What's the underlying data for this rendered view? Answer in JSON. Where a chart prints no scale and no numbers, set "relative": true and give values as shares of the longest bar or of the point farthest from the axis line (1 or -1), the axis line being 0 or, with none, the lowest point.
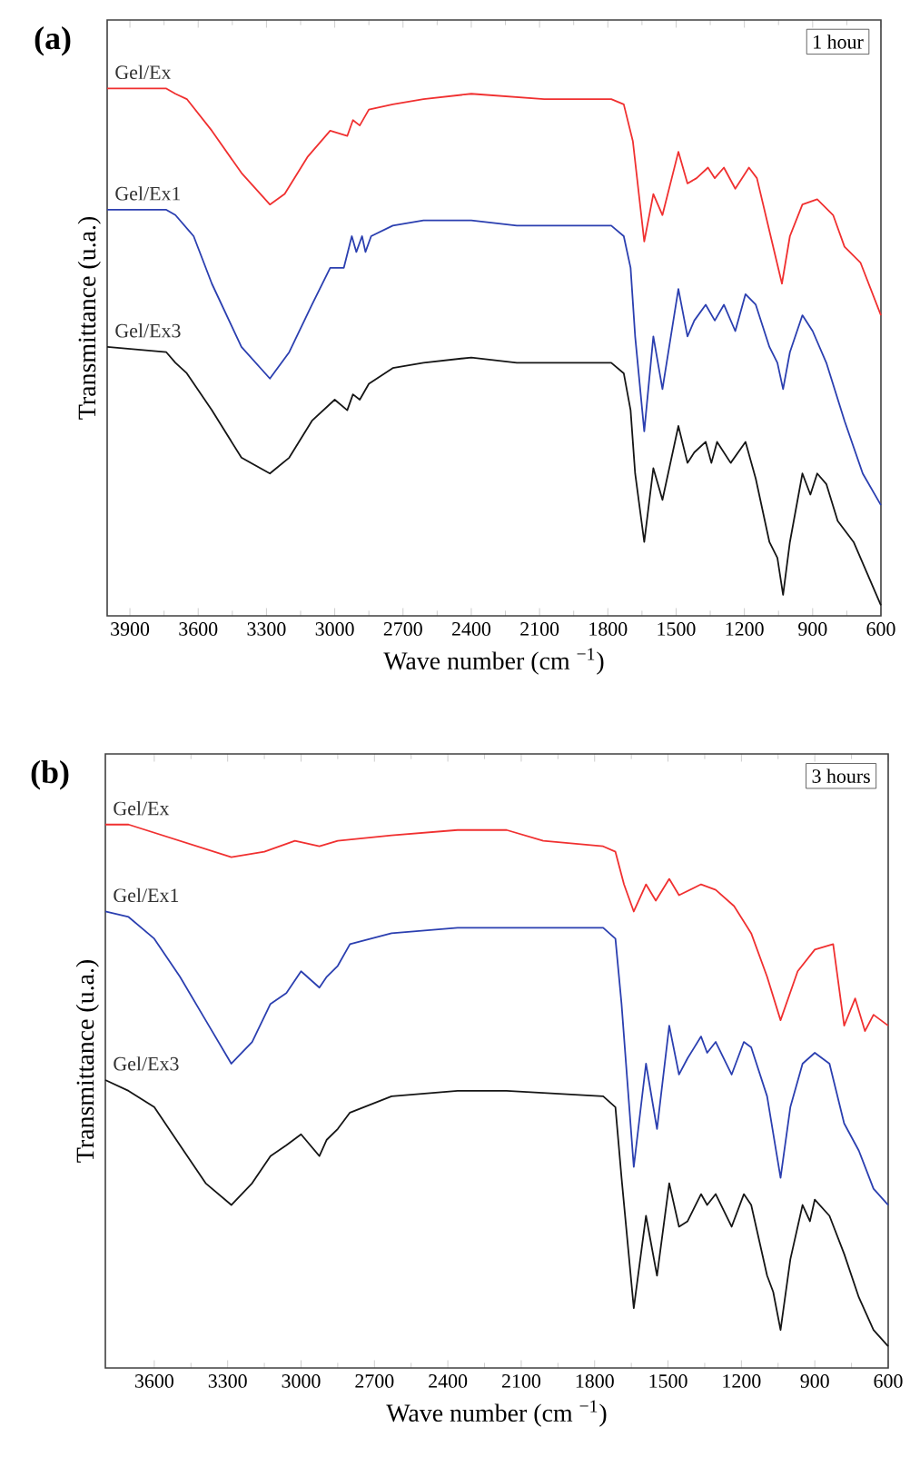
{
  "chart_data": [
    {
      "type": "line",
      "title": "(a)",
      "xlabel": "Wave number (cm $^{−1}$)",
      "ylabel": "Transmittance (u.a.)",
      "annotations": [
        "1 hour"
      ],
      "relative": true,
      "marker": "none",
      "line_style": "solid",
      "xlim": [
        4000,
        600
      ],
      "xticks": [
        3900,
        3600,
        3300,
        3000,
        2700,
        2400,
        2100,
        1800,
        1500,
        1200,
        900,
        600
      ],
      "series": [
        {
          "name": "Gel/Ex",
          "color": "#f03030",
          "x": [
            4000,
            3740,
            3700,
            3650,
            3540,
            3410,
            3285,
            3220,
            3120,
            3020,
            2945,
            2920,
            2890,
            2850,
            2745,
            2610,
            2400,
            2080,
            1785,
            1730,
            1690,
            1640,
            1600,
            1560,
            1490,
            1450,
            1410,
            1360,
            1330,
            1290,
            1240,
            1180,
            1145,
            1090,
            1035,
            1000,
            945,
            880,
            810,
            760,
            690,
            600
          ],
          "values": [
            1.0,
            1.0,
            0.99,
            0.98,
            0.92,
            0.84,
            0.78,
            0.8,
            0.87,
            0.92,
            0.91,
            0.94,
            0.93,
            0.96,
            0.97,
            0.98,
            0.99,
            0.98,
            0.98,
            0.97,
            0.9,
            0.71,
            0.8,
            0.76,
            0.88,
            0.82,
            0.83,
            0.85,
            0.83,
            0.85,
            0.81,
            0.85,
            0.83,
            0.73,
            0.63,
            0.72,
            0.78,
            0.79,
            0.76,
            0.7,
            0.67,
            0.57
          ]
        },
        {
          "name": "Gel/Ex1",
          "color": "#2b3fb0",
          "x": [
            4000,
            3740,
            3700,
            3620,
            3540,
            3410,
            3285,
            3200,
            3100,
            3020,
            2960,
            2925,
            2905,
            2880,
            2865,
            2840,
            2745,
            2610,
            2400,
            2200,
            1785,
            1730,
            1700,
            1680,
            1640,
            1600,
            1560,
            1490,
            1450,
            1420,
            1370,
            1330,
            1290,
            1240,
            1195,
            1150,
            1090,
            1055,
            1030,
            1000,
            945,
            900,
            840,
            760,
            680,
            600
          ],
          "values": [
            0.77,
            0.77,
            0.76,
            0.72,
            0.63,
            0.51,
            0.45,
            0.5,
            0.59,
            0.66,
            0.66,
            0.72,
            0.69,
            0.72,
            0.69,
            0.72,
            0.74,
            0.75,
            0.75,
            0.74,
            0.74,
            0.72,
            0.66,
            0.53,
            0.35,
            0.53,
            0.43,
            0.62,
            0.53,
            0.56,
            0.59,
            0.56,
            0.59,
            0.54,
            0.61,
            0.59,
            0.51,
            0.48,
            0.43,
            0.5,
            0.57,
            0.54,
            0.48,
            0.37,
            0.27,
            0.21
          ]
        },
        {
          "name": "Gel/Ex3",
          "color": "#151515",
          "x": [
            4000,
            3740,
            3700,
            3650,
            3540,
            3410,
            3285,
            3200,
            3100,
            3000,
            2945,
            2920,
            2890,
            2850,
            2745,
            2610,
            2400,
            2200,
            1785,
            1730,
            1700,
            1680,
            1640,
            1600,
            1560,
            1490,
            1450,
            1420,
            1370,
            1345,
            1320,
            1260,
            1195,
            1150,
            1090,
            1055,
            1030,
            1000,
            945,
            910,
            880,
            840,
            790,
            720,
            600
          ],
          "values": [
            0.51,
            0.5,
            0.48,
            0.46,
            0.39,
            0.3,
            0.27,
            0.3,
            0.37,
            0.41,
            0.39,
            0.42,
            0.41,
            0.44,
            0.47,
            0.48,
            0.49,
            0.48,
            0.48,
            0.46,
            0.39,
            0.27,
            0.14,
            0.28,
            0.22,
            0.36,
            0.29,
            0.31,
            0.33,
            0.29,
            0.33,
            0.29,
            0.33,
            0.26,
            0.14,
            0.11,
            0.04,
            0.14,
            0.27,
            0.23,
            0.27,
            0.25,
            0.18,
            0.14,
            0.02
          ]
        }
      ]
    },
    {
      "type": "line",
      "title": "(b)",
      "xlabel": "Wave number (cm $^{−1}$)",
      "ylabel": "Transmittance (u.a.)",
      "annotations": [
        "3 hours"
      ],
      "relative": true,
      "marker": "none",
      "line_style": "solid",
      "xlim": [
        3800,
        600
      ],
      "xticks": [
        3600,
        3300,
        3000,
        2700,
        2400,
        2100,
        1800,
        1500,
        1200,
        900,
        600
      ],
      "series": [
        {
          "name": "Gel/Ex",
          "color": "#f03030",
          "x": [
            3800,
            3705,
            3495,
            3285,
            3150,
            3025,
            2925,
            2850,
            2630,
            2360,
            2160,
            2010,
            1765,
            1715,
            1680,
            1640,
            1590,
            1550,
            1495,
            1455,
            1365,
            1305,
            1230,
            1160,
            1095,
            1040,
            970,
            900,
            825,
            780,
            735,
            695,
            660,
            600
          ],
          "values": [
            1.0,
            1.0,
            0.97,
            0.94,
            0.95,
            0.97,
            0.96,
            0.97,
            0.98,
            0.99,
            0.99,
            0.97,
            0.96,
            0.95,
            0.89,
            0.84,
            0.89,
            0.86,
            0.9,
            0.87,
            0.89,
            0.88,
            0.85,
            0.8,
            0.72,
            0.64,
            0.73,
            0.77,
            0.78,
            0.63,
            0.68,
            0.62,
            0.65,
            0.63
          ]
        },
        {
          "name": "Gel/Ex1",
          "color": "#2b3fb0",
          "x": [
            3800,
            3705,
            3600,
            3495,
            3390,
            3285,
            3200,
            3125,
            3060,
            3000,
            2925,
            2895,
            2850,
            2800,
            2630,
            2360,
            2160,
            1765,
            1715,
            1690,
            1640,
            1590,
            1545,
            1495,
            1455,
            1420,
            1365,
            1340,
            1305,
            1240,
            1190,
            1160,
            1095,
            1040,
            1000,
            950,
            900,
            840,
            780,
            720,
            660,
            600
          ],
          "values": [
            0.84,
            0.83,
            0.79,
            0.72,
            0.64,
            0.56,
            0.6,
            0.67,
            0.69,
            0.73,
            0.7,
            0.72,
            0.74,
            0.78,
            0.8,
            0.81,
            0.81,
            0.81,
            0.79,
            0.67,
            0.37,
            0.56,
            0.44,
            0.63,
            0.54,
            0.57,
            0.61,
            0.58,
            0.6,
            0.54,
            0.6,
            0.59,
            0.5,
            0.35,
            0.48,
            0.56,
            0.58,
            0.56,
            0.45,
            0.4,
            0.33,
            0.3
          ]
        },
        {
          "name": "Gel/Ex3",
          "color": "#151515",
          "x": [
            3800,
            3705,
            3600,
            3495,
            3390,
            3285,
            3200,
            3125,
            3060,
            3000,
            2925,
            2895,
            2850,
            2800,
            2630,
            2360,
            2160,
            1765,
            1715,
            1690,
            1640,
            1590,
            1545,
            1495,
            1455,
            1420,
            1365,
            1340,
            1305,
            1240,
            1190,
            1160,
            1095,
            1070,
            1040,
            1000,
            950,
            920,
            900,
            840,
            780,
            720,
            660,
            600
          ],
          "values": [
            0.53,
            0.51,
            0.48,
            0.41,
            0.34,
            0.3,
            0.34,
            0.39,
            0.41,
            0.43,
            0.39,
            0.42,
            0.44,
            0.47,
            0.5,
            0.51,
            0.51,
            0.5,
            0.48,
            0.35,
            0.11,
            0.28,
            0.17,
            0.34,
            0.26,
            0.27,
            0.32,
            0.3,
            0.32,
            0.26,
            0.32,
            0.3,
            0.17,
            0.14,
            0.07,
            0.2,
            0.3,
            0.27,
            0.31,
            0.28,
            0.21,
            0.13,
            0.07,
            0.04
          ]
        }
      ]
    }
  ]
}
